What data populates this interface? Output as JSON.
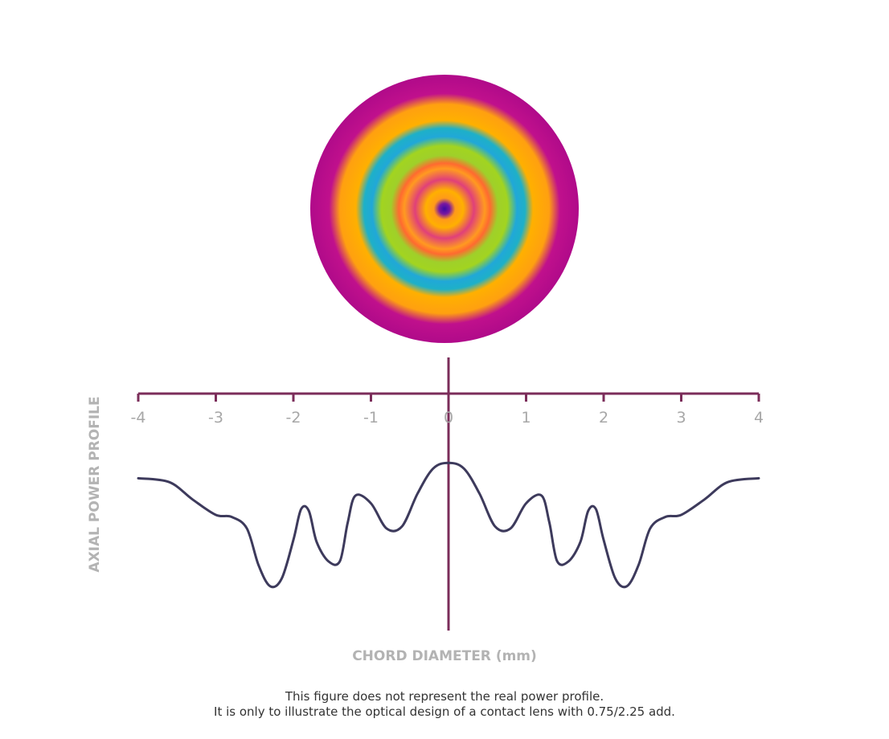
{
  "colors": {
    "axis": "#7b2d5a",
    "curve": "#3d3a5c",
    "tick_label": "#a7a7a7",
    "axis_title": "#b3b3b3"
  },
  "lens_map": {
    "description_icon": "power-map-disc-icon",
    "rings": [
      {
        "r": 0.0,
        "color": "#3a0aa6"
      },
      {
        "r": 0.04,
        "color": "#7a18a0"
      },
      {
        "r": 0.08,
        "color": "#ff9a1a"
      },
      {
        "r": 0.14,
        "color": "#ffb000"
      },
      {
        "r": 0.22,
        "color": "#e0407a"
      },
      {
        "r": 0.3,
        "color": "#ff9a20"
      },
      {
        "r": 0.34,
        "color": "#ff6a30"
      },
      {
        "r": 0.4,
        "color": "#9fd02a"
      },
      {
        "r": 0.47,
        "color": "#a2d420"
      },
      {
        "r": 0.54,
        "color": "#20a8d8"
      },
      {
        "r": 0.6,
        "color": "#1eb0c8"
      },
      {
        "r": 0.66,
        "color": "#ffb000"
      },
      {
        "r": 0.78,
        "color": "#ffa010"
      },
      {
        "r": 0.86,
        "color": "#c0108c"
      },
      {
        "r": 1.0,
        "color": "#b00a8a"
      }
    ]
  },
  "chart_data": {
    "type": "line",
    "xlabel": "CHORD DIAMETER (mm)",
    "ylabel": "AXIAL POWER PROFILE",
    "xlim": [
      -4,
      4
    ],
    "ylim": [
      0,
      1
    ],
    "x_ticks": [
      -4,
      -3,
      -2,
      -1,
      0,
      1,
      2,
      3,
      4
    ],
    "tick_labels": [
      "-4",
      "-3",
      "-2",
      "-1",
      "0",
      "1",
      "2",
      "3",
      "4"
    ],
    "grid": false,
    "series": [
      {
        "x": [
          -4.0,
          -3.6,
          -3.3,
          -3.0,
          -2.8,
          -2.6,
          -2.45,
          -2.3,
          -2.15,
          -2.0,
          -1.9,
          -1.8,
          -1.7,
          -1.55,
          -1.4,
          -1.3,
          -1.2,
          -1.0,
          -0.8,
          -0.6,
          -0.4,
          -0.2,
          0.0,
          0.2,
          0.4,
          0.6,
          0.8,
          1.0,
          1.2,
          1.3,
          1.4,
          1.55,
          1.7,
          1.8,
          1.9,
          2.0,
          2.15,
          2.3,
          2.45,
          2.6,
          2.8,
          3.0,
          3.3,
          3.6,
          4.0
        ],
        "y": [
          0.79,
          0.77,
          0.68,
          0.6,
          0.59,
          0.53,
          0.34,
          0.23,
          0.27,
          0.47,
          0.63,
          0.62,
          0.46,
          0.36,
          0.36,
          0.56,
          0.7,
          0.66,
          0.53,
          0.54,
          0.71,
          0.84,
          0.87,
          0.84,
          0.71,
          0.54,
          0.53,
          0.66,
          0.7,
          0.56,
          0.36,
          0.36,
          0.46,
          0.62,
          0.63,
          0.47,
          0.27,
          0.23,
          0.34,
          0.53,
          0.59,
          0.6,
          0.68,
          0.77,
          0.79
        ]
      }
    ]
  },
  "caption": {
    "line1": "This figure does not represent the real power profile.",
    "line2": "It is only to illustrate the optical design of a contact lens with 0.75/2.25 add."
  }
}
